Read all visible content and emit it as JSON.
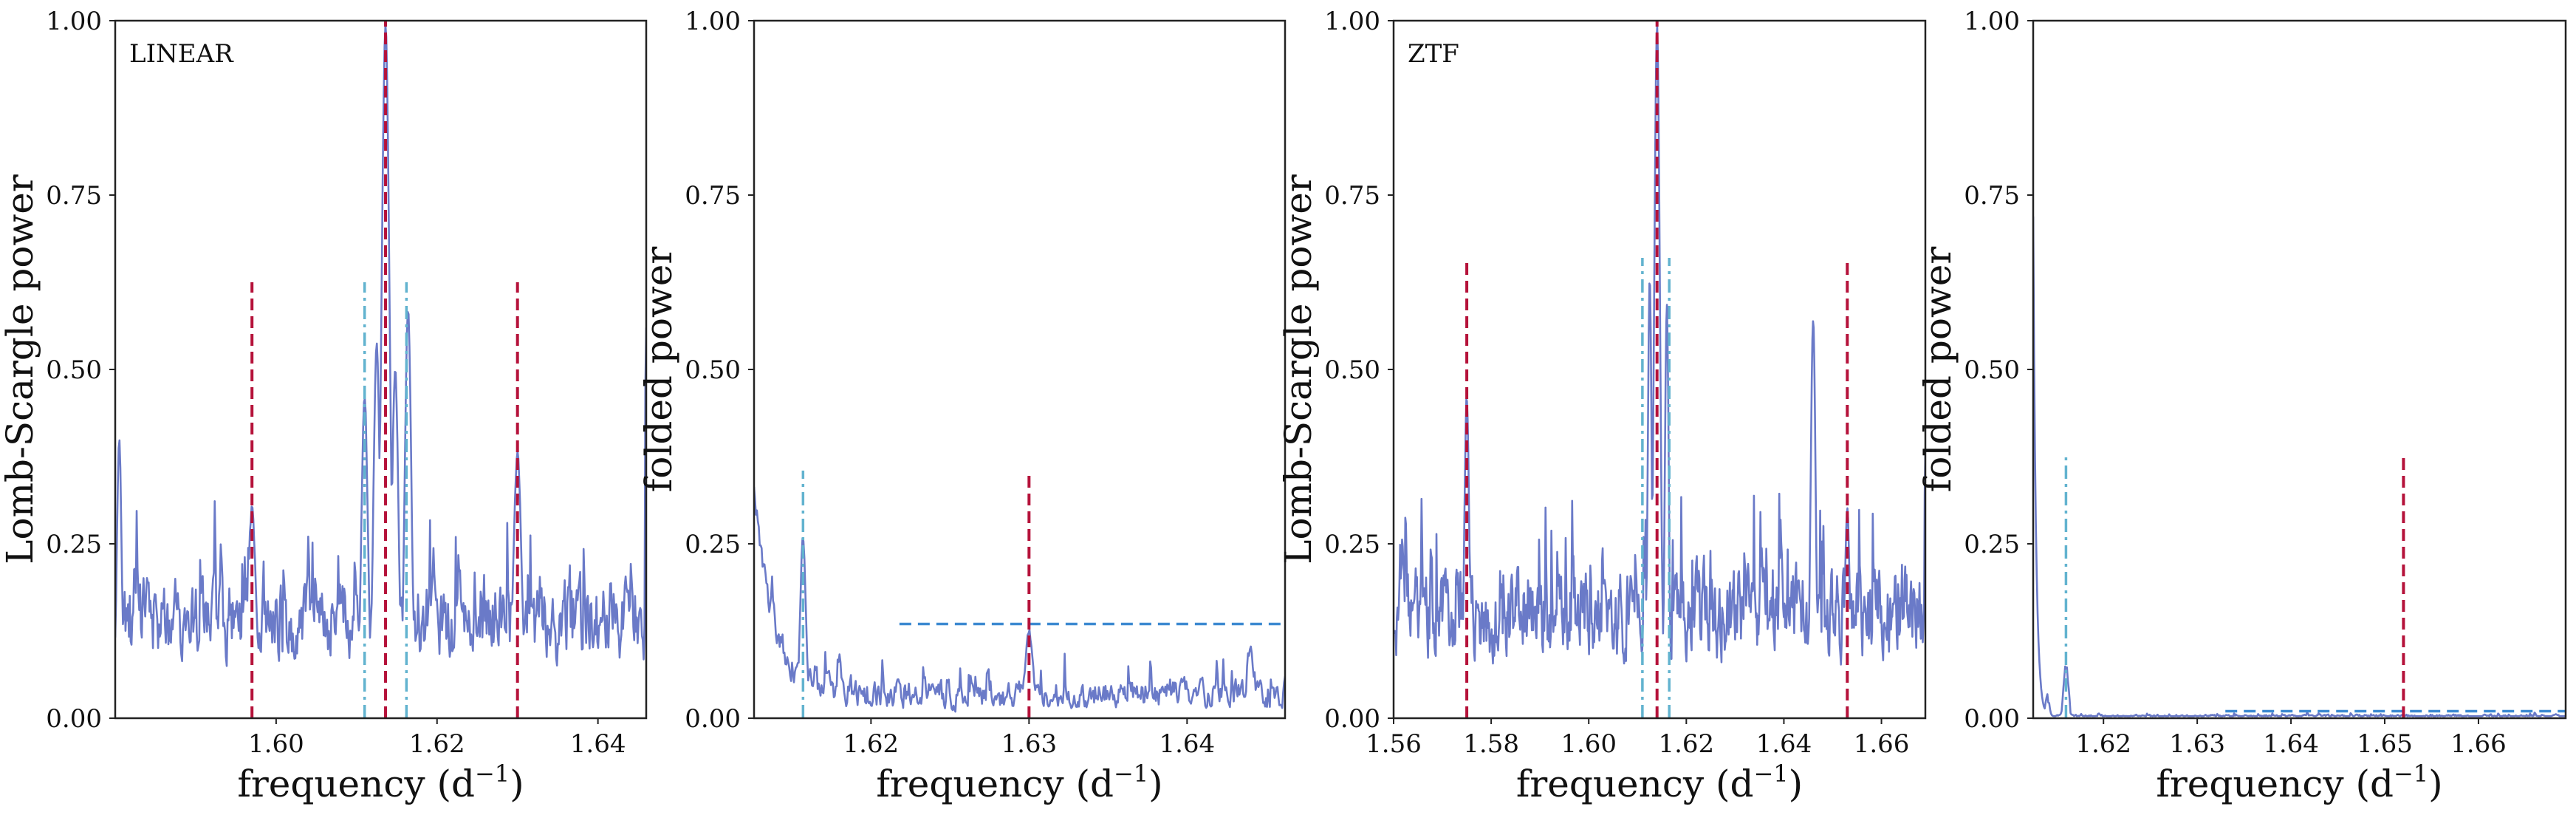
{
  "figure": {
    "colors": {
      "periodogram": "#6a7ac8",
      "main_marker": "#b5123a",
      "alias_marker": "#62b3cf",
      "threshold": "#3d8ad1"
    }
  },
  "chart_data": [
    {
      "type": "line",
      "panel_label": "LINEAR",
      "xlabel": "frequency (d",
      "xlabel_sup": "−1",
      "xlabel_end": ")",
      "ylabel": "Lomb-Scargle power",
      "xlim": [
        1.58,
        1.646
      ],
      "ylim": [
        0.0,
        1.0
      ],
      "xticks": [
        1.6,
        1.62,
        1.64
      ],
      "xtick_labels": [
        "1.60",
        "1.62",
        "1.64"
      ],
      "yticks": [
        0.0,
        0.25,
        0.5,
        0.75,
        1.0
      ],
      "ytick_labels": [
        "0.00",
        "0.25",
        "0.50",
        "0.75",
        "1.00"
      ],
      "series": {
        "kind": "noisy",
        "seed": 11,
        "n_points": 620,
        "baseline": 0.14,
        "noise": 0.085,
        "end_value": 0.56,
        "peaks": [
          {
            "x": 1.6136,
            "height": 0.99,
            "width": 0.0005
          },
          {
            "x": 1.6125,
            "height": 0.54,
            "width": 0.0004
          },
          {
            "x": 1.6148,
            "height": 0.5,
            "width": 0.0004
          },
          {
            "x": 1.6164,
            "height": 0.59,
            "width": 0.0004
          },
          {
            "x": 1.611,
            "height": 0.46,
            "width": 0.0004
          },
          {
            "x": 1.63,
            "height": 0.38,
            "width": 0.0005
          },
          {
            "x": 1.597,
            "height": 0.3,
            "width": 0.0005
          },
          {
            "x": 1.5805,
            "height": 0.4,
            "width": 0.0003
          }
        ]
      },
      "markers": [
        {
          "x": 1.597,
          "ymax": 0.625,
          "style": "main"
        },
        {
          "x": 1.6136,
          "ymax": 1.0,
          "style": "main"
        },
        {
          "x": 1.63,
          "ymax": 0.625,
          "style": "main"
        },
        {
          "x": 1.611,
          "ymax": 0.625,
          "style": "alias"
        },
        {
          "x": 1.6162,
          "ymax": 0.625,
          "style": "alias"
        }
      ],
      "thresholds": []
    },
    {
      "type": "line",
      "panel_label": "",
      "xlabel": "frequency (d",
      "xlabel_sup": "−1",
      "xlabel_end": ")",
      "ylabel": "folded power",
      "xlim": [
        1.6126,
        1.6462
      ],
      "ylim": [
        0.0,
        1.0
      ],
      "xticks": [
        1.62,
        1.63,
        1.64
      ],
      "xtick_labels": [
        "1.62",
        "1.63",
        "1.64"
      ],
      "yticks": [
        0.0,
        0.25,
        0.5,
        0.75,
        1.0
      ],
      "ytick_labels": [
        "0.00",
        "0.25",
        "0.50",
        "0.75",
        "1.00"
      ],
      "series": {
        "kind": "noisy",
        "seed": 23,
        "n_points": 560,
        "baseline": 0.035,
        "noise": 0.03,
        "start_value": 0.34,
        "decay": 0.0012,
        "end_value": 0.06,
        "peaks": [
          {
            "x": 1.6157,
            "height": 0.26,
            "width": 0.00018
          },
          {
            "x": 1.63,
            "height": 0.125,
            "width": 0.00025
          },
          {
            "x": 1.618,
            "height": 0.09,
            "width": 0.00015
          },
          {
            "x": 1.644,
            "height": 0.1,
            "width": 0.0002
          }
        ]
      },
      "markers": [
        {
          "x": 1.6157,
          "ymax": 0.355,
          "style": "alias"
        },
        {
          "x": 1.63,
          "ymax": 0.355,
          "style": "main"
        }
      ],
      "thresholds": [
        {
          "y": 0.135,
          "x_from": 1.6218,
          "x_to": 1.6462
        }
      ]
    },
    {
      "type": "line",
      "panel_label": "ZTF",
      "xlabel": "frequency (d",
      "xlabel_sup": "−1",
      "xlabel_end": ")",
      "ylabel": "Lomb-Scargle power",
      "xlim": [
        1.56,
        1.669
      ],
      "ylim": [
        0.0,
        1.0
      ],
      "xticks": [
        1.56,
        1.58,
        1.6,
        1.62,
        1.64,
        1.66
      ],
      "xtick_labels": [
        "1.56",
        "1.58",
        "1.60",
        "1.62",
        "1.64",
        "1.66"
      ],
      "yticks": [
        0.0,
        0.25,
        0.5,
        0.75,
        1.0
      ],
      "ytick_labels": [
        "0.00",
        "0.25",
        "0.50",
        "0.75",
        "1.00"
      ],
      "series": {
        "kind": "noisy",
        "seed": 37,
        "n_points": 820,
        "baseline": 0.15,
        "noise": 0.09,
        "end_value": 0.38,
        "peaks": [
          {
            "x": 1.614,
            "height": 0.99,
            "width": 0.0006
          },
          {
            "x": 1.6125,
            "height": 0.63,
            "width": 0.0004
          },
          {
            "x": 1.616,
            "height": 0.59,
            "width": 0.0004
          },
          {
            "x": 1.646,
            "height": 0.57,
            "width": 0.0005
          },
          {
            "x": 1.575,
            "height": 0.46,
            "width": 0.0005
          },
          {
            "x": 1.653,
            "height": 0.3,
            "width": 0.0005
          }
        ]
      },
      "markers": [
        {
          "x": 1.575,
          "ymax": 0.66,
          "style": "main"
        },
        {
          "x": 1.614,
          "ymax": 1.0,
          "style": "main"
        },
        {
          "x": 1.653,
          "ymax": 0.66,
          "style": "main"
        },
        {
          "x": 1.611,
          "ymax": 0.66,
          "style": "alias"
        },
        {
          "x": 1.6165,
          "ymax": 0.66,
          "style": "alias"
        }
      ],
      "thresholds": []
    },
    {
      "type": "line",
      "panel_label": "",
      "xlabel": "frequency (d",
      "xlabel_sup": "−1",
      "xlabel_end": ")",
      "ylabel": "folded power",
      "xlim": [
        1.6125,
        1.6693
      ],
      "ylim": [
        0.0,
        1.0
      ],
      "xticks": [
        1.62,
        1.63,
        1.64,
        1.65,
        1.66
      ],
      "xtick_labels": [
        "1.62",
        "1.63",
        "1.64",
        "1.65",
        "1.66"
      ],
      "yticks": [
        0.0,
        0.25,
        0.5,
        0.75,
        1.0
      ],
      "ytick_labels": [
        "0.00",
        "0.25",
        "0.50",
        "0.75",
        "1.00"
      ],
      "series": {
        "kind": "noisy",
        "seed": 53,
        "n_points": 600,
        "baseline": 0.003,
        "noise": 0.003,
        "start_value": 0.72,
        "decay": 0.0003,
        "end_value": 0.003,
        "peaks": [
          {
            "x": 1.616,
            "height": 0.075,
            "width": 0.00025
          },
          {
            "x": 1.614,
            "height": 0.03,
            "width": 0.0002
          }
        ]
      },
      "markers": [
        {
          "x": 1.616,
          "ymax": 0.375,
          "style": "alias"
        },
        {
          "x": 1.652,
          "ymax": 0.375,
          "style": "main"
        }
      ],
      "thresholds": [
        {
          "y": 0.01,
          "x_from": 1.633,
          "x_to": 1.6693
        }
      ]
    }
  ]
}
